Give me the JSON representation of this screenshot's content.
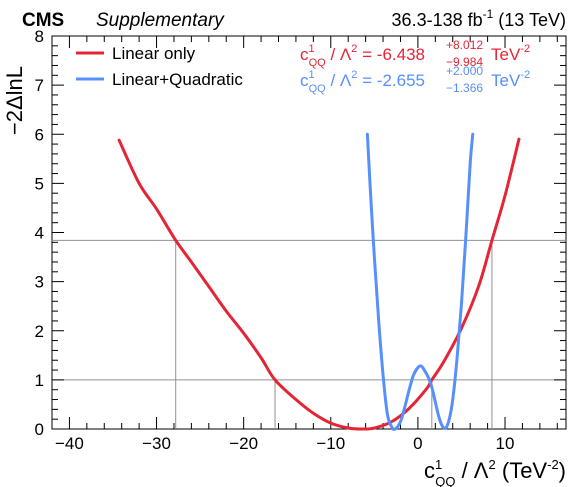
{
  "header": {
    "experiment": "CMS",
    "status": "Supplementary",
    "lumi": "36.3-138 fb",
    "lumi_sup": "-1",
    "energy": " (13 TeV)"
  },
  "axes": {
    "ylabel": "−2ΔlnL",
    "xlabel_c": "c",
    "xlabel_sup": "1",
    "xlabel_sub": "QQ",
    "xlabel_mid": " / Λ",
    "xlabel_lam_sup": "2",
    "xlabel_unit": " (TeV",
    "xlabel_unit_sup": "-2",
    "xlabel_close": ")"
  },
  "legend": {
    "linear_label": "Linear only",
    "quad_label": "Linear+Quadratic",
    "linear_result": {
      "value": "-6.438",
      "up": "+8.012",
      "down": "−9.984"
    },
    "quad_result": {
      "value": "-2.655",
      "up": "+2.000",
      "down": "−1.366"
    },
    "result_prefix_sup": "1",
    "result_prefix_sub": "QQ",
    "result_unit": "TeV",
    "result_unit_sup": "-2"
  },
  "chart_data": {
    "type": "line",
    "xlim": [
      -42,
      17
    ],
    "ylim": [
      0,
      8
    ],
    "xticks": [
      -40,
      -30,
      -20,
      -10,
      0,
      10
    ],
    "yticks": [
      0,
      1,
      2,
      3,
      4,
      5,
      6,
      7,
      8
    ],
    "reference_lines": [
      1,
      3.84
    ],
    "interval_markers": [
      {
        "x": -27.8,
        "y": 3.84
      },
      {
        "x": -16.4,
        "y": 1
      },
      {
        "x": 1.6,
        "y": 1
      },
      {
        "x": 8.5,
        "y": 3.84
      }
    ],
    "series": [
      {
        "name": "Linear only",
        "color": "#e42536",
        "x": [
          -34.3,
          -32,
          -30,
          -27.8,
          -26,
          -24,
          -22,
          -20,
          -18,
          -16.4,
          -14,
          -12,
          -10,
          -8,
          -6.44,
          -5,
          -3,
          -1,
          1,
          1.6,
          3,
          5,
          7,
          8.5,
          10,
          11.6
        ],
        "y": [
          5.88,
          5.0,
          4.48,
          3.84,
          3.4,
          2.9,
          2.4,
          1.95,
          1.45,
          1.0,
          0.6,
          0.32,
          0.12,
          0.02,
          0.0,
          0.02,
          0.15,
          0.42,
          0.82,
          1.0,
          1.38,
          2.05,
          2.92,
          3.84,
          4.75,
          5.9
        ]
      },
      {
        "name": "Linear+Quadratic",
        "color": "#5790fc",
        "x": [
          -5.8,
          -5.5,
          -5.0,
          -4.5,
          -4.0,
          -3.5,
          -3.0,
          -2.6,
          -2.0,
          -1.5,
          -1.0,
          -0.5,
          0.0,
          0.4,
          0.8,
          1.2,
          1.6,
          2.0,
          2.4,
          2.8,
          3.2,
          3.6,
          4.0,
          4.5,
          5.0,
          5.5,
          6.0,
          6.3
        ],
        "y": [
          6.0,
          5.0,
          3.5,
          2.2,
          1.1,
          0.3,
          0.04,
          0.0,
          0.15,
          0.45,
          0.8,
          1.1,
          1.25,
          1.28,
          1.18,
          1.05,
          0.85,
          0.55,
          0.25,
          0.06,
          0.02,
          0.2,
          0.6,
          1.45,
          2.55,
          3.9,
          5.4,
          6.0
        ]
      }
    ]
  }
}
